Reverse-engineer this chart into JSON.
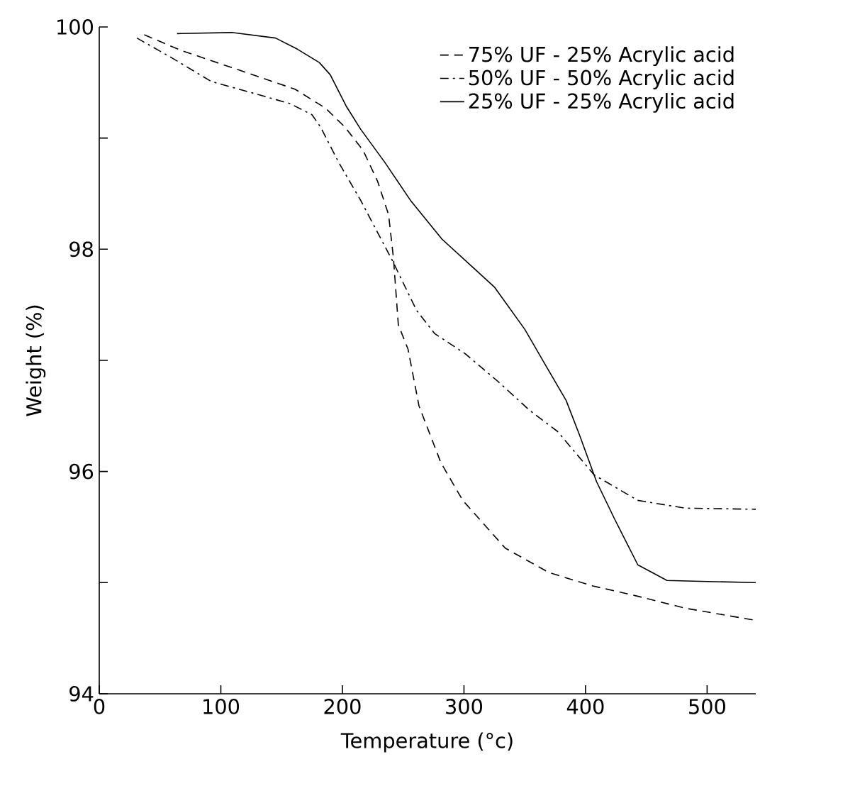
{
  "chart_data": {
    "type": "line",
    "xlabel": "Temperature (°c)",
    "ylabel": "Weight (%)",
    "xlim": [
      0,
      540
    ],
    "xticks": [
      0,
      100,
      200,
      300,
      400,
      500
    ],
    "ylim": [
      94,
      100
    ],
    "yticks": [
      94,
      {
        "value": 95,
        "label": null
      },
      96,
      {
        "value": 97,
        "label": null
      },
      98,
      {
        "value": 99,
        "label": null
      },
      100
    ],
    "legend": "top right",
    "grid": false,
    "marker": "none",
    "series": [
      {
        "name": "75% UF - 25% Acrylic acid",
        "color": "#000000",
        "line_style": "dashed",
        "x": [
          37,
          67,
          121,
          161,
          186,
          202,
          217,
          229,
          238,
          242,
          246,
          254,
          263,
          281,
          299,
          334,
          370,
          406,
          442,
          482,
          540
        ],
        "values": [
          99.93,
          99.79,
          99.59,
          99.44,
          99.27,
          99.1,
          98.89,
          98.61,
          98.31,
          97.92,
          97.32,
          97.1,
          96.59,
          96.08,
          95.74,
          95.31,
          95.09,
          94.97,
          94.88,
          94.77,
          94.66
        ]
      },
      {
        "name": "50% UF - 50% Acrylic acid",
        "color": "#000000",
        "line_style": "dashdot",
        "x": [
          31,
          60,
          92,
          128,
          157,
          175,
          182,
          197,
          215,
          241,
          261,
          276,
          301,
          328,
          354,
          377,
          407,
          443,
          482,
          540
        ],
        "values": [
          99.9,
          99.72,
          99.51,
          99.4,
          99.31,
          99.21,
          99.1,
          98.78,
          98.44,
          97.9,
          97.45,
          97.24,
          97.06,
          96.81,
          96.55,
          96.36,
          95.97,
          95.74,
          95.67,
          95.66
        ]
      },
      {
        "name": "25% UF - 25% Acrylic acid",
        "color": "#000000",
        "line_style": "solid",
        "x": [
          64,
          109,
          145,
          163,
          181,
          190,
          203,
          215,
          235,
          256,
          282,
          307,
          325,
          350,
          368,
          384,
          395,
          409,
          424,
          443,
          467,
          500,
          540
        ],
        "values": [
          99.94,
          99.95,
          99.9,
          99.8,
          99.68,
          99.57,
          99.29,
          99.08,
          98.78,
          98.44,
          98.09,
          97.84,
          97.66,
          97.28,
          96.94,
          96.64,
          96.33,
          95.91,
          95.57,
          95.16,
          95.02,
          95.01,
          95.0
        ]
      }
    ]
  }
}
